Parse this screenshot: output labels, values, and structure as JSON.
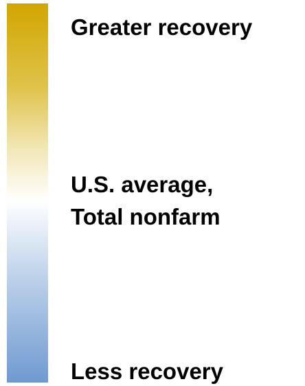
{
  "legend": {
    "top_label": "Greater recovery",
    "middle_label": [
      "U.S. average,",
      "Total nonfarm"
    ],
    "bottom_label": "Less recovery"
  }
}
